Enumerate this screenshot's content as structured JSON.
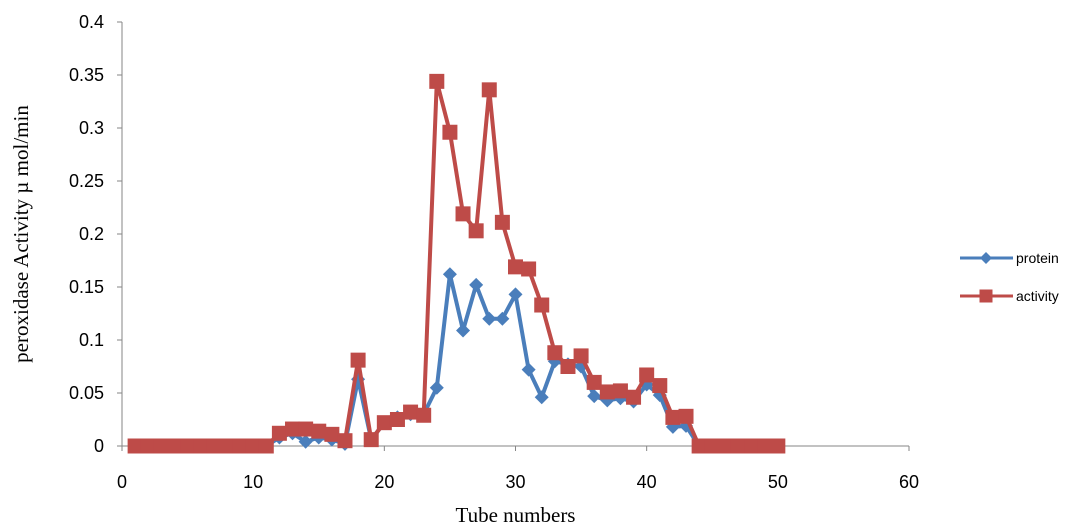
{
  "chart_data": {
    "type": "line",
    "title": "",
    "xlabel": "Tube numbers",
    "ylabel": "peroxidase Activity µ mol/min",
    "xlim": [
      0,
      60
    ],
    "ylim": [
      0,
      0.4
    ],
    "xticks": [
      0,
      10,
      20,
      30,
      40,
      50,
      60
    ],
    "yticks": [
      0,
      0.05,
      0.1,
      0.15,
      0.2,
      0.25,
      0.3,
      0.35,
      0.4
    ],
    "x_tick_labels": [
      "0",
      "10",
      "20",
      "30",
      "40",
      "50",
      "60"
    ],
    "y_tick_labels": [
      "0",
      "0.05",
      "0.1",
      "0.15",
      "0.2",
      "0.25",
      "0.3",
      "0.35",
      "0.4"
    ],
    "grid": false,
    "legend_position": "right",
    "series": [
      {
        "name": "protein",
        "color": "#4a7ebb",
        "marker": "diamond",
        "x": [
          1,
          2,
          3,
          4,
          5,
          6,
          7,
          8,
          9,
          10,
          11,
          12,
          13,
          14,
          15,
          16,
          17,
          18,
          19,
          20,
          21,
          22,
          23,
          24,
          25,
          26,
          27,
          28,
          29,
          30,
          31,
          32,
          33,
          34,
          35,
          36,
          37,
          38,
          39,
          40,
          41,
          42,
          43,
          44,
          45,
          46,
          47,
          48,
          49,
          50
        ],
        "y": [
          0,
          0,
          0,
          0,
          0,
          0,
          0,
          0,
          0,
          0,
          0,
          0.008,
          0.012,
          0.004,
          0.008,
          0.006,
          0.002,
          0.063,
          0.006,
          0.022,
          0.027,
          0.03,
          0.03,
          0.055,
          0.162,
          0.109,
          0.152,
          0.12,
          0.12,
          0.143,
          0.072,
          0.046,
          0.08,
          0.077,
          0.075,
          0.047,
          0.043,
          0.045,
          0.042,
          0.058,
          0.048,
          0.018,
          0.019,
          0,
          0,
          0,
          0,
          0,
          0,
          0
        ]
      },
      {
        "name": "activity",
        "color": "#be4b48",
        "marker": "square",
        "x": [
          1,
          2,
          3,
          4,
          5,
          6,
          7,
          8,
          9,
          10,
          11,
          12,
          13,
          14,
          15,
          16,
          17,
          18,
          19,
          20,
          21,
          22,
          23,
          24,
          25,
          26,
          27,
          28,
          29,
          30,
          31,
          32,
          33,
          34,
          35,
          36,
          37,
          38,
          39,
          40,
          41,
          42,
          43,
          44,
          45,
          46,
          47,
          48,
          49,
          50
        ],
        "y": [
          0,
          0,
          0,
          0,
          0,
          0,
          0,
          0,
          0,
          0,
          0,
          0.012,
          0.016,
          0.016,
          0.014,
          0.011,
          0.005,
          0.081,
          0.006,
          0.022,
          0.025,
          0.032,
          0.029,
          0.344,
          0.296,
          0.219,
          0.203,
          0.336,
          0.211,
          0.169,
          0.167,
          0.133,
          0.088,
          0.075,
          0.085,
          0.06,
          0.051,
          0.052,
          0.046,
          0.067,
          0.057,
          0.027,
          0.028,
          0,
          0,
          0,
          0,
          0,
          0,
          0
        ]
      }
    ]
  }
}
